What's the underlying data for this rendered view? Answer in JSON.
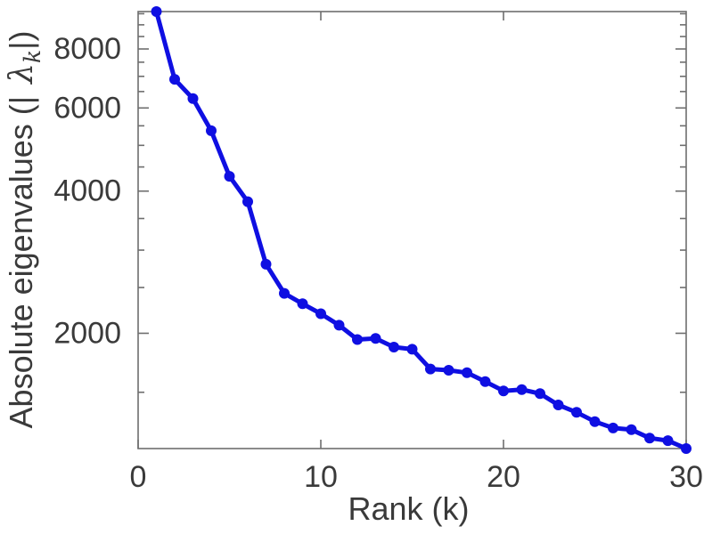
{
  "figure": {
    "background": "#ffffff",
    "text_color": "#3a3a3a",
    "axis_color": "#6e6e6e"
  },
  "chart_data": {
    "type": "line",
    "title": "",
    "xlabel": "Rank (k)",
    "ylabel": "Absolute eigenvalues (|λk|)",
    "ylabel_parts": {
      "prefix": "Absolute eigenvalues (|",
      "symbol": "λ",
      "subscript": "k",
      "suffix": "|)"
    },
    "xscale": "linear",
    "yscale": "log",
    "xlim": [
      0,
      30
    ],
    "ylim": [
      1140,
      9600
    ],
    "xticks": [
      0,
      10,
      20,
      30
    ],
    "xtick_labels": [
      "0",
      "10",
      "20",
      "30"
    ],
    "yticks": [
      2000,
      4000,
      6000,
      8000
    ],
    "ytick_labels": [
      "2000",
      "4000",
      "6000",
      "8000"
    ],
    "minor_yticks": [
      1500,
      2500,
      3000,
      3500,
      4500,
      5000,
      5500,
      6500,
      7000,
      7500,
      8500,
      9000,
      9500
    ],
    "grid": false,
    "box": true,
    "legend": null,
    "series": [
      {
        "name": "absolute-eigenvalues",
        "color": "#0f0fe2",
        "marker": "circle",
        "line_width": 5,
        "x": [
          1,
          2,
          3,
          4,
          5,
          6,
          7,
          8,
          9,
          10,
          11,
          12,
          13,
          14,
          15,
          16,
          17,
          18,
          19,
          20,
          21,
          22,
          23,
          24,
          25,
          26,
          27,
          28,
          29,
          30
        ],
        "values": [
          9600,
          6900,
          6280,
          5370,
          4300,
          3800,
          2800,
          2430,
          2310,
          2200,
          2080,
          1940,
          1950,
          1870,
          1850,
          1680,
          1670,
          1650,
          1580,
          1510,
          1520,
          1490,
          1410,
          1360,
          1300,
          1260,
          1250,
          1200,
          1185,
          1140
        ]
      }
    ]
  }
}
